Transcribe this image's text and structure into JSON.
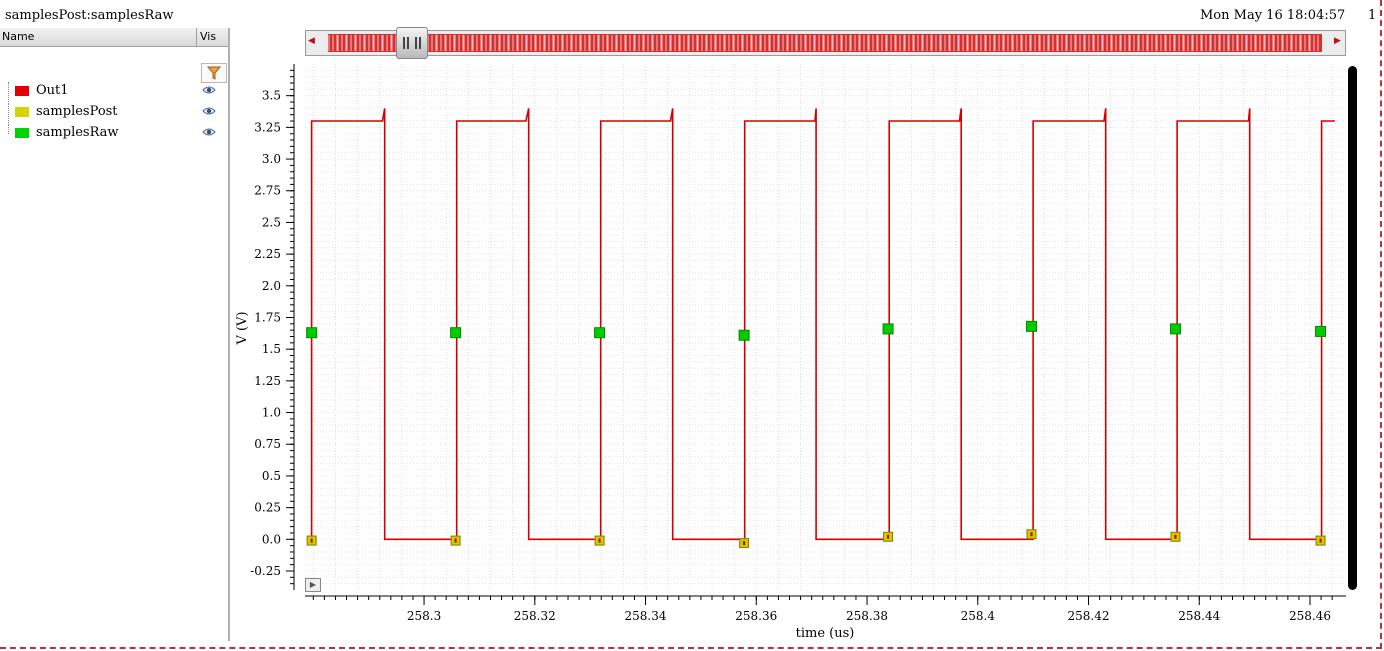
{
  "window": {
    "title_left": "samplesPost:samplesRaw",
    "title_right": "Mon May 16 18:04:57",
    "title_extra": "1"
  },
  "panel": {
    "col_name": "Name",
    "col_vis": "Vis",
    "signals": [
      {
        "label": "Out1",
        "color": "#e00000"
      },
      {
        "label": "samplesPost",
        "color": "#d4d400"
      },
      {
        "label": "samplesRaw",
        "color": "#00d400"
      }
    ]
  },
  "chart_data": {
    "type": "line",
    "xlabel": "time (us)",
    "ylabel": "V (V)",
    "xlim": [
      258.2785,
      258.4665
    ],
    "ylim": [
      -0.4,
      3.75
    ],
    "x_ticks": [
      258.3,
      258.32,
      258.34,
      258.36,
      258.38,
      258.4,
      258.42,
      258.44,
      258.46
    ],
    "x_tick_labels": [
      "258.3",
      "258.32",
      "258.34",
      "258.36",
      "258.38",
      "258.4",
      "258.42",
      "258.44",
      "258.46"
    ],
    "y_ticks": [
      3.5,
      3.25,
      3.0,
      2.75,
      2.5,
      2.25,
      2.0,
      1.75,
      1.5,
      1.25,
      1.0,
      0.75,
      0.5,
      0.25,
      0.0,
      -0.25
    ],
    "y_tick_labels": [
      "3.5",
      "3.25",
      "3.0",
      "2.75",
      "2.5",
      "2.25",
      "2.0",
      "1.75",
      "1.5",
      "1.25",
      "1.0",
      "0.75",
      "0.5",
      "0.25",
      "0.0",
      "-0.25"
    ],
    "grid": true,
    "series": [
      {
        "name": "Out1",
        "color": "#d40000",
        "x": [
          258.2797,
          258.2797,
          258.2799,
          258.2799,
          258.2925,
          258.2925,
          258.2929,
          258.2929,
          258.3056,
          258.3056,
          258.3059,
          258.3059,
          258.3184,
          258.3184,
          258.3189,
          258.3189,
          258.3317,
          258.3317,
          258.3319,
          258.3319,
          258.3445,
          258.3445,
          258.3449,
          258.3449,
          258.3577,
          258.3577,
          258.3579,
          258.3579,
          258.3706,
          258.3706,
          258.3708,
          258.3708,
          258.3838,
          258.3838,
          258.384,
          258.384,
          258.3967,
          258.3967,
          258.397,
          258.397,
          258.4097,
          258.4097,
          258.41,
          258.41,
          258.4228,
          258.4228,
          258.4231,
          258.4231,
          258.4357,
          258.4357,
          258.436,
          258.436,
          258.4489,
          258.4489,
          258.4491,
          258.4491,
          258.4619,
          258.4619,
          258.4621,
          258.4621,
          258.4645
        ],
        "y": [
          0.0,
          3.3,
          3.3,
          3.3,
          3.3,
          3.3,
          3.4,
          0.0,
          0.0,
          0.0,
          0.0,
          3.3,
          3.3,
          3.3,
          3.4,
          0.0,
          0.0,
          0.0,
          0.0,
          3.3,
          3.3,
          3.3,
          3.4,
          0.0,
          0.0,
          0.0,
          0.0,
          3.3,
          3.3,
          3.3,
          3.4,
          0.0,
          0.0,
          0.0,
          0.0,
          3.3,
          3.3,
          3.3,
          3.4,
          0.0,
          0.0,
          0.0,
          0.0,
          3.3,
          3.3,
          3.3,
          3.4,
          0.0,
          0.0,
          0.0,
          0.0,
          3.3,
          3.3,
          3.3,
          3.4,
          0.0,
          0.0,
          0.0,
          0.0,
          3.3,
          3.3
        ]
      },
      {
        "name": "samplesPost",
        "color": "#cccc00",
        "x": [
          258.2797,
          258.3057,
          258.3317,
          258.3578,
          258.3838,
          258.4097,
          258.4357,
          258.4619
        ],
        "y": [
          -0.01,
          -0.01,
          -0.01,
          -0.03,
          0.02,
          0.04,
          0.02,
          -0.01
        ]
      },
      {
        "name": "samplesRaw",
        "color": "#00cc00",
        "x": [
          258.2797,
          258.3057,
          258.3317,
          258.3578,
          258.3838,
          258.4097,
          258.4357,
          258.4619
        ],
        "y": [
          1.63,
          1.63,
          1.63,
          1.61,
          1.66,
          1.68,
          1.66,
          1.64
        ]
      }
    ]
  }
}
